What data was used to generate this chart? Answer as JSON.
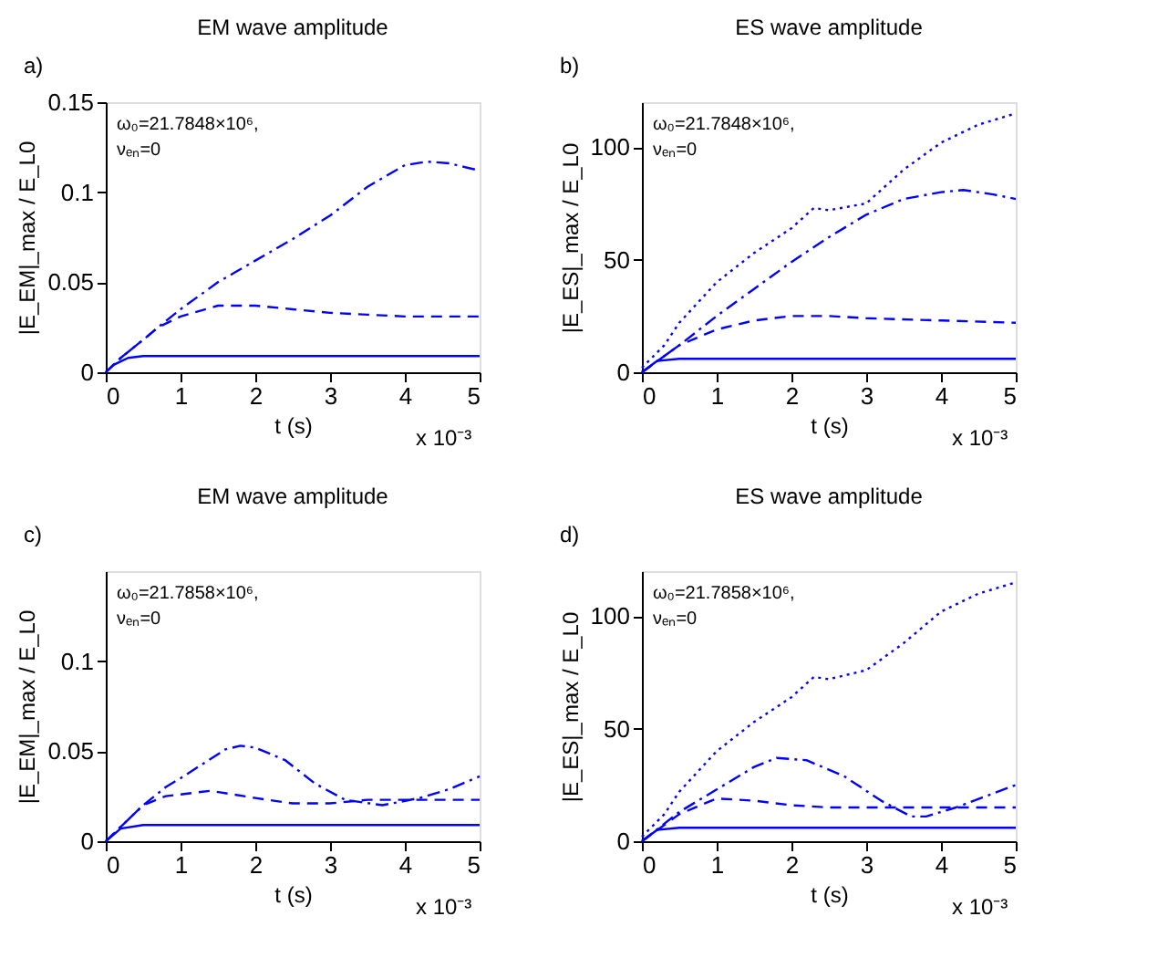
{
  "chart_data": [
    {
      "type": "line",
      "title": "EM wave amplitude",
      "xlabel": "t (s)",
      "ylabel": "|E_EM|_max / E_L0",
      "annotations": [
        "a)",
        "ω₀=21.7848×10⁶,",
        "νₑₙ=0",
        "x 10⁻³"
      ],
      "xlim": [
        0,
        5
      ],
      "xticks": [
        0,
        1,
        2,
        3,
        4,
        5
      ],
      "ylim": [
        0,
        0.15
      ],
      "yticks": [
        0,
        0.05,
        0.1,
        0.15
      ],
      "grid": false,
      "series": [
        {
          "color": "#0000ff",
          "line_style": "solid",
          "x": [
            0,
            0.1,
            0.2,
            0.3,
            0.5,
            1,
            5
          ],
          "values": [
            0,
            0.004,
            0.006,
            0.008,
            0.009,
            0.009,
            0.009
          ]
        },
        {
          "color": "#0000ff",
          "line_style": "dashed",
          "x": [
            0,
            0.2,
            0.5,
            0.7,
            1,
            1.5,
            2,
            2.5,
            3,
            3.5,
            4,
            5
          ],
          "values": [
            0,
            0.008,
            0.018,
            0.025,
            0.031,
            0.037,
            0.037,
            0.035,
            0.033,
            0.032,
            0.031,
            0.031
          ]
        },
        {
          "color": "#0000ff",
          "line_style": "dashdot",
          "x": [
            0,
            0.2,
            0.5,
            0.7,
            1,
            1.5,
            2,
            2.5,
            3,
            3.5,
            4,
            4.3,
            4.6,
            5
          ],
          "values": [
            0,
            0.008,
            0.018,
            0.025,
            0.035,
            0.05,
            0.062,
            0.074,
            0.087,
            0.103,
            0.115,
            0.117,
            0.116,
            0.112
          ]
        }
      ]
    },
    {
      "type": "line",
      "title": "ES wave amplitude",
      "xlabel": "t (s)",
      "ylabel": "|E_ES|_max / E_L0",
      "annotations": [
        "b)",
        "ω₀=21.7848×10⁶,",
        "νₑₙ=0",
        "x 10⁻³"
      ],
      "xlim": [
        0,
        5
      ],
      "xticks": [
        0,
        1,
        2,
        3,
        4,
        5
      ],
      "ylim": [
        0,
        120
      ],
      "yticks": [
        0,
        50,
        100
      ],
      "grid": false,
      "series": [
        {
          "color": "#0000ff",
          "line_style": "solid",
          "x": [
            0,
            0.2,
            0.5,
            5
          ],
          "values": [
            0,
            5,
            6,
            6
          ]
        },
        {
          "color": "#0000ff",
          "line_style": "dashed",
          "x": [
            0,
            0.5,
            1,
            1.5,
            2,
            2.5,
            3,
            4,
            5
          ],
          "values": [
            0,
            12,
            19,
            23,
            25,
            25,
            24,
            23,
            22
          ]
        },
        {
          "color": "#0000ff",
          "line_style": "dashdot",
          "x": [
            0,
            0.5,
            1,
            1.5,
            2,
            2.5,
            3,
            3.5,
            4,
            4.3,
            4.7,
            5
          ],
          "values": [
            0,
            12,
            25,
            37,
            49,
            60,
            70,
            77,
            80,
            81,
            79,
            77
          ]
        },
        {
          "color": "#0000ff",
          "line_style": "dotted",
          "x": [
            0,
            0.3,
            0.5,
            1,
            1.5,
            2,
            2.3,
            2.5,
            3,
            3.5,
            4,
            4.5,
            5
          ],
          "values": [
            2,
            12,
            22,
            40,
            53,
            64,
            73,
            72,
            75,
            90,
            102,
            110,
            115
          ]
        }
      ]
    },
    {
      "type": "line",
      "title": "EM wave amplitude",
      "xlabel": "t (s)",
      "ylabel": "|E_EM|_max / E_L0",
      "annotations": [
        "c)",
        "ω₀=21.7858×10⁶,",
        "νₑₙ=0",
        "x 10⁻³"
      ],
      "xlim": [
        0,
        5
      ],
      "xticks": [
        0,
        1,
        2,
        3,
        4,
        5
      ],
      "ylim": [
        0,
        0.15
      ],
      "yticks": [
        0,
        0.05,
        0.1
      ],
      "grid": false,
      "series": [
        {
          "color": "#0000ff",
          "line_style": "solid",
          "x": [
            0,
            0.2,
            0.5,
            5
          ],
          "values": [
            0,
            0.007,
            0.009,
            0.009
          ]
        },
        {
          "color": "#0000ff",
          "line_style": "dashed",
          "x": [
            0,
            0.3,
            0.5,
            0.8,
            1,
            1.4,
            2,
            2.5,
            3,
            3.5,
            4,
            5
          ],
          "values": [
            0,
            0.012,
            0.02,
            0.025,
            0.026,
            0.028,
            0.024,
            0.021,
            0.021,
            0.023,
            0.023,
            0.023
          ]
        },
        {
          "color": "#0000ff",
          "line_style": "dashdot",
          "x": [
            0,
            0.3,
            0.5,
            0.8,
            1,
            1.3,
            1.6,
            1.8,
            2,
            2.4,
            2.8,
            3.2,
            3.7,
            4.2,
            4.6,
            5
          ],
          "values": [
            0,
            0.012,
            0.02,
            0.03,
            0.035,
            0.043,
            0.051,
            0.053,
            0.052,
            0.045,
            0.032,
            0.023,
            0.02,
            0.024,
            0.029,
            0.036
          ]
        }
      ]
    },
    {
      "type": "line",
      "title": "ES wave amplitude",
      "xlabel": "t (s)",
      "ylabel": "|E_ES|_max / E_L0",
      "annotations": [
        "d)",
        "ω₀=21.7858×10⁶,",
        "νₑₙ=0",
        "x 10⁻³"
      ],
      "xlim": [
        0,
        5
      ],
      "xticks": [
        0,
        1,
        2,
        3,
        4,
        5
      ],
      "ylim": [
        0,
        120
      ],
      "yticks": [
        0,
        50,
        100
      ],
      "grid": false,
      "series": [
        {
          "color": "#0000ff",
          "line_style": "solid",
          "x": [
            0,
            0.2,
            0.5,
            5
          ],
          "values": [
            0,
            5,
            6,
            6
          ]
        },
        {
          "color": "#0000ff",
          "line_style": "dashed",
          "x": [
            0,
            0.5,
            1,
            1.5,
            2,
            2.5,
            3,
            3.5,
            4,
            5
          ],
          "values": [
            0,
            12,
            19,
            18,
            16,
            15,
            15,
            15,
            15,
            15
          ]
        },
        {
          "color": "#0000ff",
          "line_style": "dashdot",
          "x": [
            0,
            0.5,
            1,
            1.5,
            1.8,
            2.2,
            2.7,
            3.2,
            3.6,
            3.8,
            4.2,
            4.6,
            5
          ],
          "values": [
            0,
            13,
            23,
            33,
            37,
            36,
            29,
            18,
            11,
            11,
            15,
            20,
            25
          ]
        },
        {
          "color": "#0000ff",
          "line_style": "dotted",
          "x": [
            0,
            0.3,
            0.5,
            1,
            1.5,
            2,
            2.3,
            2.5,
            3,
            3.5,
            4,
            4.5,
            5
          ],
          "values": [
            2,
            12,
            22,
            40,
            53,
            64,
            73,
            72,
            76,
            88,
            102,
            110,
            115
          ]
        }
      ]
    }
  ]
}
